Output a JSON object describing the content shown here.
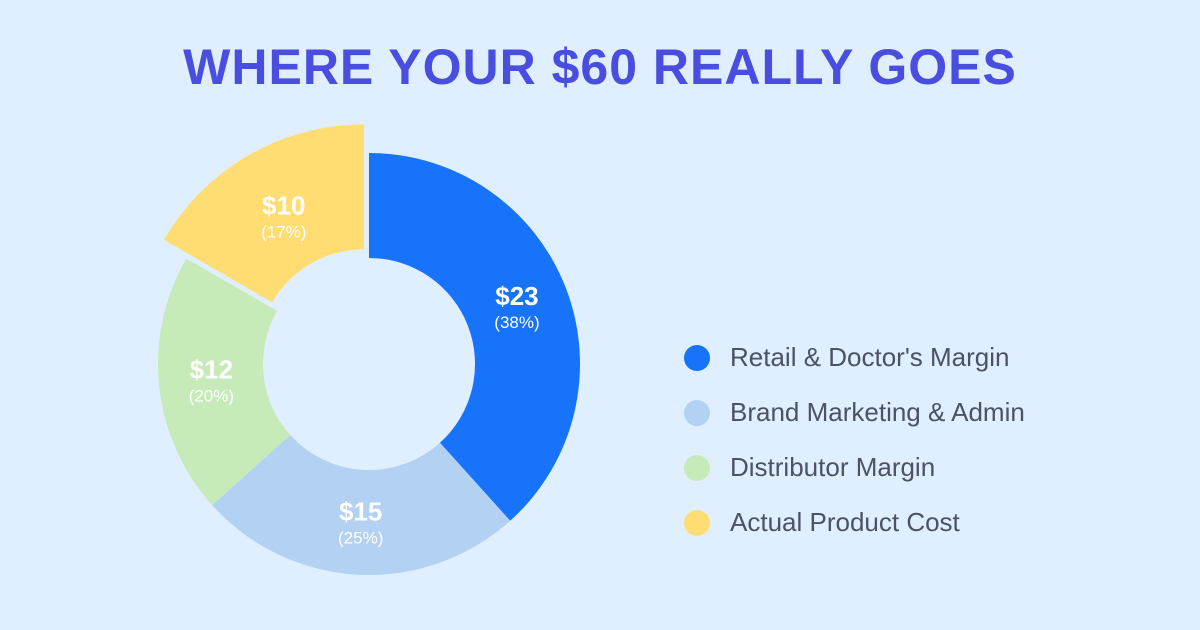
{
  "title": "WHERE YOUR $60 REALLY GOES",
  "colors": {
    "background": "#e0efff",
    "title": "#4a4ee0",
    "label_text": "#ffffff"
  },
  "chart_data": {
    "type": "pie",
    "variant": "donut",
    "title": "WHERE YOUR $60 REALLY GOES",
    "total": 60,
    "legend_position": "right",
    "slices": [
      {
        "name": "Retail & Doctor's Margin",
        "value": 23,
        "value_label": "$23",
        "percent_label": "(38%)",
        "color": "#1673fa"
      },
      {
        "name": "Brand Marketing & Admin",
        "value": 15,
        "value_label": "$15",
        "percent_label": "(25%)",
        "color": "#b3d2f3"
      },
      {
        "name": "Distributor Margin",
        "value": 12,
        "value_label": "$12",
        "percent_label": "(20%)",
        "color": "#c6ebb9"
      },
      {
        "name": "Actual Product Cost",
        "value": 10,
        "value_label": "$10",
        "percent_label": "(17%)",
        "color": "#ffdd72",
        "exploded": true
      }
    ]
  },
  "legend": {
    "items": [
      {
        "label": "Retail & Doctor's Margin",
        "color": "#1673fa"
      },
      {
        "label": "Brand Marketing & Admin",
        "color": "#b3d2f3"
      },
      {
        "label": "Distributor Margin",
        "color": "#c6ebb9"
      },
      {
        "label": "Actual Product Cost",
        "color": "#ffdd72"
      }
    ]
  }
}
